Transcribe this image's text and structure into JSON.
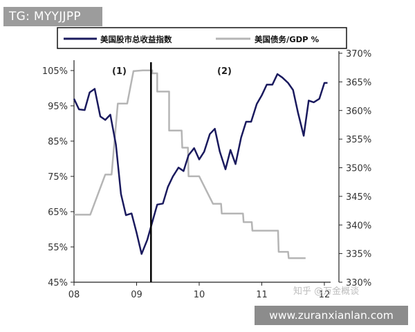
{
  "badge": {
    "text": "TG: MYYJJPP"
  },
  "footer": {
    "url": "www.zuranxianlan.com"
  },
  "watermark": {
    "text": "知乎 @万金概谈"
  },
  "chart_data": {
    "type": "line",
    "legend": [
      {
        "name": "美国股市总收益指数",
        "color": "#1a1a5e"
      },
      {
        "name": "美国债务/GDP %",
        "color": "#b5b5b5"
      }
    ],
    "legend_placement": "top",
    "annotations": [
      "(1)",
      "(2)"
    ],
    "x_axis": {
      "ticks": [
        "08",
        "09",
        "10",
        "11",
        "12"
      ],
      "range": [
        2008,
        2012.1
      ]
    },
    "y_left": {
      "ticks": [
        "105%",
        "95%",
        "85%",
        "75%",
        "65%",
        "55%",
        "45%"
      ],
      "range": [
        45,
        105
      ]
    },
    "y_right": {
      "ticks": [
        "370%",
        "365%",
        "360%",
        "355%",
        "350%",
        "345%",
        "340%",
        "335%",
        "330%"
      ],
      "range": [
        330,
        370
      ]
    },
    "divider_x": 2009.23,
    "grid": false,
    "series": [
      {
        "name": "美国股市总收益指数",
        "axis": "left",
        "x": [
          2008.0,
          2008.08,
          2008.17,
          2008.25,
          2008.33,
          2008.42,
          2008.5,
          2008.58,
          2008.67,
          2008.75,
          2008.83,
          2008.92,
          2009.0,
          2009.08,
          2009.17,
          2009.25,
          2009.33,
          2009.42,
          2009.5,
          2009.58,
          2009.67,
          2009.75,
          2009.83,
          2009.92,
          2010.0,
          2010.08,
          2010.17,
          2010.25,
          2010.33,
          2010.42,
          2010.5,
          2010.58,
          2010.67,
          2010.75,
          2010.83,
          2010.92,
          2011.0,
          2011.08,
          2011.17,
          2011.25,
          2011.33,
          2011.42,
          2011.5,
          2011.58,
          2011.67,
          2011.75,
          2011.83,
          2011.92,
          2012.0,
          2012.05
        ],
        "values": [
          97,
          94,
          93.8,
          98.8,
          99.8,
          92,
          91,
          92.5,
          84,
          70,
          64,
          64.5,
          59,
          53,
          57,
          62,
          67,
          67.3,
          72,
          75,
          77.5,
          76.5,
          81,
          83,
          79.8,
          82,
          87,
          88.5,
          82,
          77,
          82.5,
          78.5,
          86,
          90.5,
          90.5,
          95.5,
          98,
          101,
          101,
          104,
          103,
          101.5,
          99.5,
          93,
          86.5,
          96.5,
          96,
          97,
          101.5,
          101.5
        ]
      },
      {
        "name": "美国债务/GDP %",
        "axis": "right",
        "x": [
          2008.0,
          2008.25,
          2008.26,
          2008.5,
          2008.5,
          2008.6,
          2008.6,
          2008.7,
          2008.7,
          2008.84,
          2008.85,
          2008.95,
          2008.96,
          2009.1,
          2009.11,
          2009.25,
          2009.25,
          2009.33,
          2009.33,
          2009.52,
          2009.52,
          2009.72,
          2009.73,
          2009.82,
          2009.83,
          2009.99,
          2010.0,
          2010.22,
          2010.23,
          2010.35,
          2010.36,
          2010.5,
          2010.51,
          2010.7,
          2010.71,
          2010.84,
          2010.85,
          2011.1,
          2011.11,
          2011.26,
          2011.27,
          2011.42,
          2011.43,
          2011.52,
          2011.53,
          2011.7
        ],
        "values": [
          341.8,
          341.8,
          341.8,
          348.8,
          348.8,
          348.8,
          348.8,
          361.2,
          361.2,
          361.2,
          361.2,
          366.9,
          366.9,
          367,
          367,
          367,
          366.5,
          366.5,
          363.3,
          363.3,
          356.5,
          356.5,
          353.5,
          353.5,
          348.5,
          348.5,
          348.5,
          343.7,
          343.7,
          343.7,
          342,
          342,
          342,
          342,
          340.5,
          340.5,
          339,
          339,
          339,
          339,
          335.3,
          335.3,
          334.2,
          334.2,
          334.2,
          334.2
        ]
      }
    ]
  }
}
